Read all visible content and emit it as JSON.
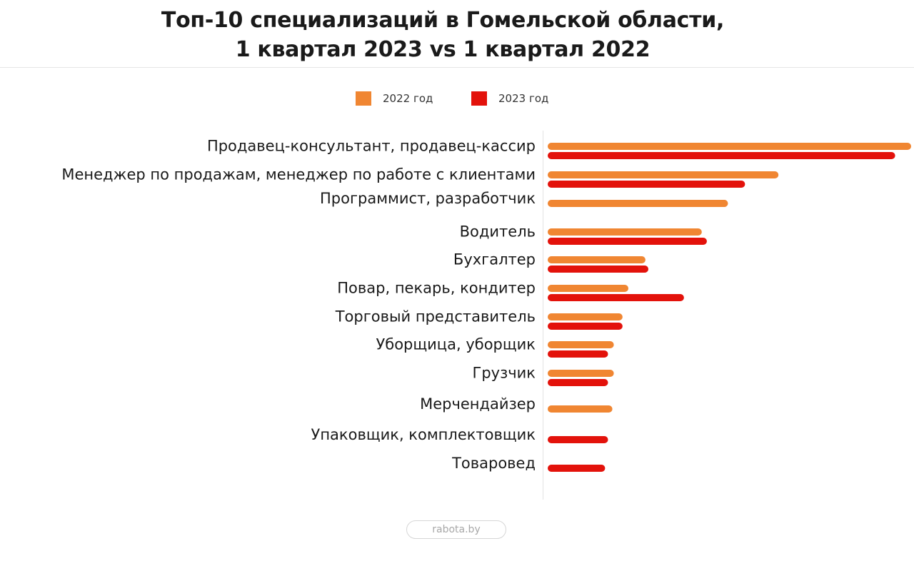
{
  "title": {
    "line1": "Топ-10 специализаций в Гомельской области,",
    "line2": "1 квартал 2023 vs 1 квартал 2022"
  },
  "footer": {
    "source": "rabota.by"
  },
  "colors": {
    "series_2022": "#f08632",
    "series_2023": "#e3120b"
  },
  "chart_data": {
    "type": "bar",
    "orientation": "horizontal",
    "legend_position": "top-center",
    "grid": false,
    "xlim": [
      0,
      100
    ],
    "categories": [
      "Продавец-консультант, продавец-кассир",
      "Менеджер по продажам, менеджер по работе с клиентами",
      "Программист, разработчик",
      "Водитель",
      "Бухгалтер",
      "Повар, пекарь, кондитер",
      "Торговый представитель",
      "Уборщица, уборщик",
      "Грузчик",
      "Мерчендайзер",
      "Упаковщик, комплектовщик",
      "Товаровед"
    ],
    "series": [
      {
        "name": "2022 год",
        "color": "#f08632",
        "values": [
          100,
          63.5,
          49.6,
          42.4,
          26.9,
          22.2,
          20.6,
          18.2,
          18.2,
          17.8,
          null,
          null
        ]
      },
      {
        "name": "2023 год",
        "color": "#e3120b",
        "values": [
          95.6,
          54.3,
          null,
          43.8,
          27.7,
          37.5,
          20.6,
          16.6,
          16.6,
          null,
          16.6,
          15.8
        ]
      }
    ]
  }
}
